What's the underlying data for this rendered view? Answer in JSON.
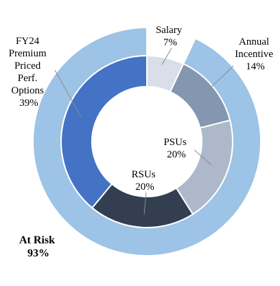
{
  "chart_data": {
    "type": "pie",
    "subtype": "nested-donut",
    "inner_ring": {
      "slices": [
        {
          "label": "Salary",
          "value": 7,
          "value_label": "7%",
          "color": "#d9dee8"
        },
        {
          "label": "Annual Incentive",
          "value": 14,
          "value_label": "14%",
          "color": "#8497b0"
        },
        {
          "label": "PSUs",
          "value": 20,
          "value_label": "20%",
          "color": "#adb9ca"
        },
        {
          "label": "RSUs",
          "value": 20,
          "value_label": "20%",
          "color": "#333f50"
        },
        {
          "label": "FY24 Premium Priced Perf. Options",
          "value": 39,
          "value_label": "39%",
          "color": "#4472c4"
        }
      ]
    },
    "outer_ring": {
      "slices": [
        {
          "label": "At Risk",
          "value": 93,
          "value_label": "93%",
          "color": "#9dc3e6"
        },
        {
          "label": "",
          "value": 7,
          "value_label": "",
          "color": "#ffffff"
        }
      ]
    }
  },
  "labels": {
    "salary": {
      "lines": [
        "Salary",
        "7%"
      ]
    },
    "annual_incentive": {
      "lines": [
        "Annual",
        "Incentive",
        "14%"
      ]
    },
    "psus": {
      "lines": [
        "PSUs",
        "20%"
      ]
    },
    "rsus": {
      "lines": [
        "RSUs",
        "20%"
      ]
    },
    "options": {
      "lines": [
        "FY24",
        "Premium",
        "Priced",
        "Perf.",
        "Options",
        "39%"
      ]
    },
    "at_risk": {
      "lines": [
        "At Risk",
        "93%"
      ]
    }
  }
}
